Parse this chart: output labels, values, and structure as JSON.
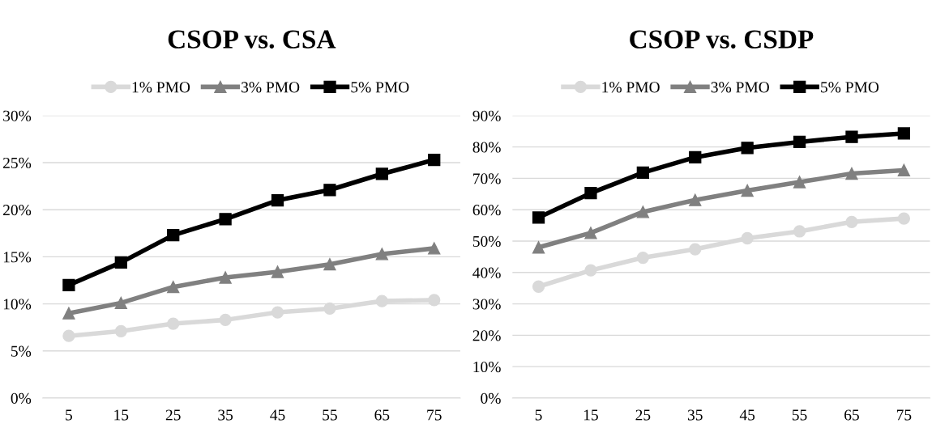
{
  "chart_data": [
    {
      "type": "line",
      "title": "CSOP vs. CSA",
      "categories": [
        "5",
        "15",
        "25",
        "35",
        "45",
        "55",
        "65",
        "75"
      ],
      "series": [
        {
          "name": "1% PMO",
          "color": "#d9d9d9",
          "marker": "circle",
          "values": [
            6.6,
            7.1,
            7.9,
            8.3,
            9.1,
            9.5,
            10.3,
            10.4
          ]
        },
        {
          "name": "3% PMO",
          "color": "#808080",
          "marker": "triangle",
          "values": [
            9.0,
            10.1,
            11.8,
            12.8,
            13.4,
            14.2,
            15.3,
            15.9
          ]
        },
        {
          "name": "5% PMO",
          "color": "#000000",
          "marker": "square",
          "values": [
            12.0,
            14.4,
            17.3,
            19.0,
            21.0,
            22.1,
            23.8,
            25.3
          ]
        }
      ],
      "ylim": [
        0,
        30
      ],
      "yticks": [
        {
          "value": 0,
          "label": "0%"
        },
        {
          "value": 5,
          "label": "5%"
        },
        {
          "value": 10,
          "label": "10%"
        },
        {
          "value": 15,
          "label": "15%"
        },
        {
          "value": 20,
          "label": "20%"
        },
        {
          "value": 25,
          "label": "25%"
        },
        {
          "value": 30,
          "label": "30%"
        }
      ],
      "grid": "y",
      "legend": "top",
      "line_style": "solid"
    },
    {
      "type": "line",
      "title": "CSOP vs. CSDP",
      "categories": [
        "5",
        "15",
        "25",
        "35",
        "45",
        "55",
        "65",
        "75"
      ],
      "series": [
        {
          "name": "1% PMO",
          "color": "#d9d9d9",
          "marker": "circle",
          "values": [
            35.5,
            40.7,
            44.7,
            47.4,
            50.9,
            53.1,
            56.1,
            57.2
          ]
        },
        {
          "name": "3% PMO",
          "color": "#808080",
          "marker": "triangle",
          "values": [
            48.0,
            52.6,
            59.3,
            63.1,
            66.1,
            68.8,
            71.5,
            72.6
          ]
        },
        {
          "name": "5% PMO",
          "color": "#000000",
          "marker": "square",
          "values": [
            57.5,
            65.3,
            71.8,
            76.7,
            79.7,
            81.6,
            83.2,
            84.3
          ]
        }
      ],
      "ylim": [
        0,
        90
      ],
      "yticks": [
        {
          "value": 0,
          "label": "0%"
        },
        {
          "value": 10,
          "label": "10%"
        },
        {
          "value": 20,
          "label": "20%"
        },
        {
          "value": 30,
          "label": "30%"
        },
        {
          "value": 40,
          "label": "40%"
        },
        {
          "value": 50,
          "label": "50%"
        },
        {
          "value": 60,
          "label": "60%"
        },
        {
          "value": 70,
          "label": "70%"
        },
        {
          "value": 80,
          "label": "80%"
        },
        {
          "value": 90,
          "label": "90%"
        }
      ],
      "grid": "y",
      "legend": "top",
      "line_style": "solid"
    }
  ]
}
